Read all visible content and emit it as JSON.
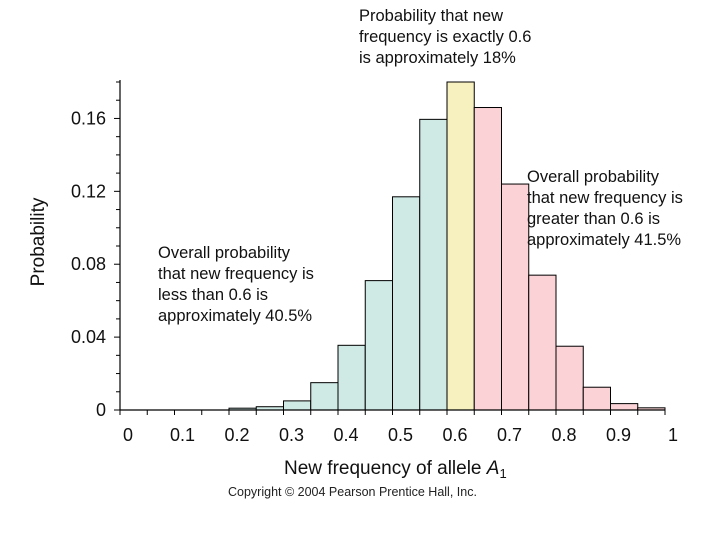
{
  "chart_data": {
    "type": "bar",
    "title": "",
    "xlabel": "New frequency of allele",
    "xlabel_variable": "A",
    "xlabel_subscript": "1",
    "ylabel": "Probability",
    "xlim": [
      0,
      1
    ],
    "ylim": [
      0,
      0.18
    ],
    "x_ticks": [
      "0",
      "0.1",
      "0.2",
      "0.3",
      "0.4",
      "0.5",
      "0.6",
      "0.7",
      "0.8",
      "0.9",
      "1"
    ],
    "y_ticks": [
      "0",
      "0.04",
      "0.08",
      "0.12",
      "0.16"
    ],
    "bin_width": 0.05,
    "bins": [
      {
        "x": 0.2,
        "value": 0.001,
        "group": "less"
      },
      {
        "x": 0.25,
        "value": 0.0018,
        "group": "less"
      },
      {
        "x": 0.3,
        "value": 0.005,
        "group": "less"
      },
      {
        "x": 0.35,
        "value": 0.015,
        "group": "less"
      },
      {
        "x": 0.4,
        "value": 0.0355,
        "group": "less"
      },
      {
        "x": 0.45,
        "value": 0.071,
        "group": "less"
      },
      {
        "x": 0.5,
        "value": 0.117,
        "group": "less"
      },
      {
        "x": 0.55,
        "value": 0.1595,
        "group": "less"
      },
      {
        "x": 0.6,
        "value": 0.18,
        "group": "exact"
      },
      {
        "x": 0.65,
        "value": 0.166,
        "group": "greater"
      },
      {
        "x": 0.7,
        "value": 0.124,
        "group": "greater"
      },
      {
        "x": 0.75,
        "value": 0.074,
        "group": "greater"
      },
      {
        "x": 0.8,
        "value": 0.035,
        "group": "greater"
      },
      {
        "x": 0.85,
        "value": 0.0125,
        "group": "greater"
      },
      {
        "x": 0.9,
        "value": 0.0035,
        "group": "greater"
      },
      {
        "x": 0.95,
        "value": 0.0012,
        "group": "greater"
      }
    ],
    "colors": {
      "less": "#cfe9e4",
      "exact": "#f7f1bf",
      "greater": "#fbd3d6",
      "edge": "#000000"
    }
  },
  "annotations": {
    "exact": "Probability that new\nfrequency is exactly 0.6\nis approximately 18%",
    "greater": "Overall probability\nthat new frequency is\ngreater than 0.6 is\napproximately 41.5%",
    "less": "Overall probability\nthat new frequency is\nless than 0.6 is\napproximately 40.5%"
  },
  "copyright": "Copyright © 2004 Pearson Prentice Hall, Inc."
}
